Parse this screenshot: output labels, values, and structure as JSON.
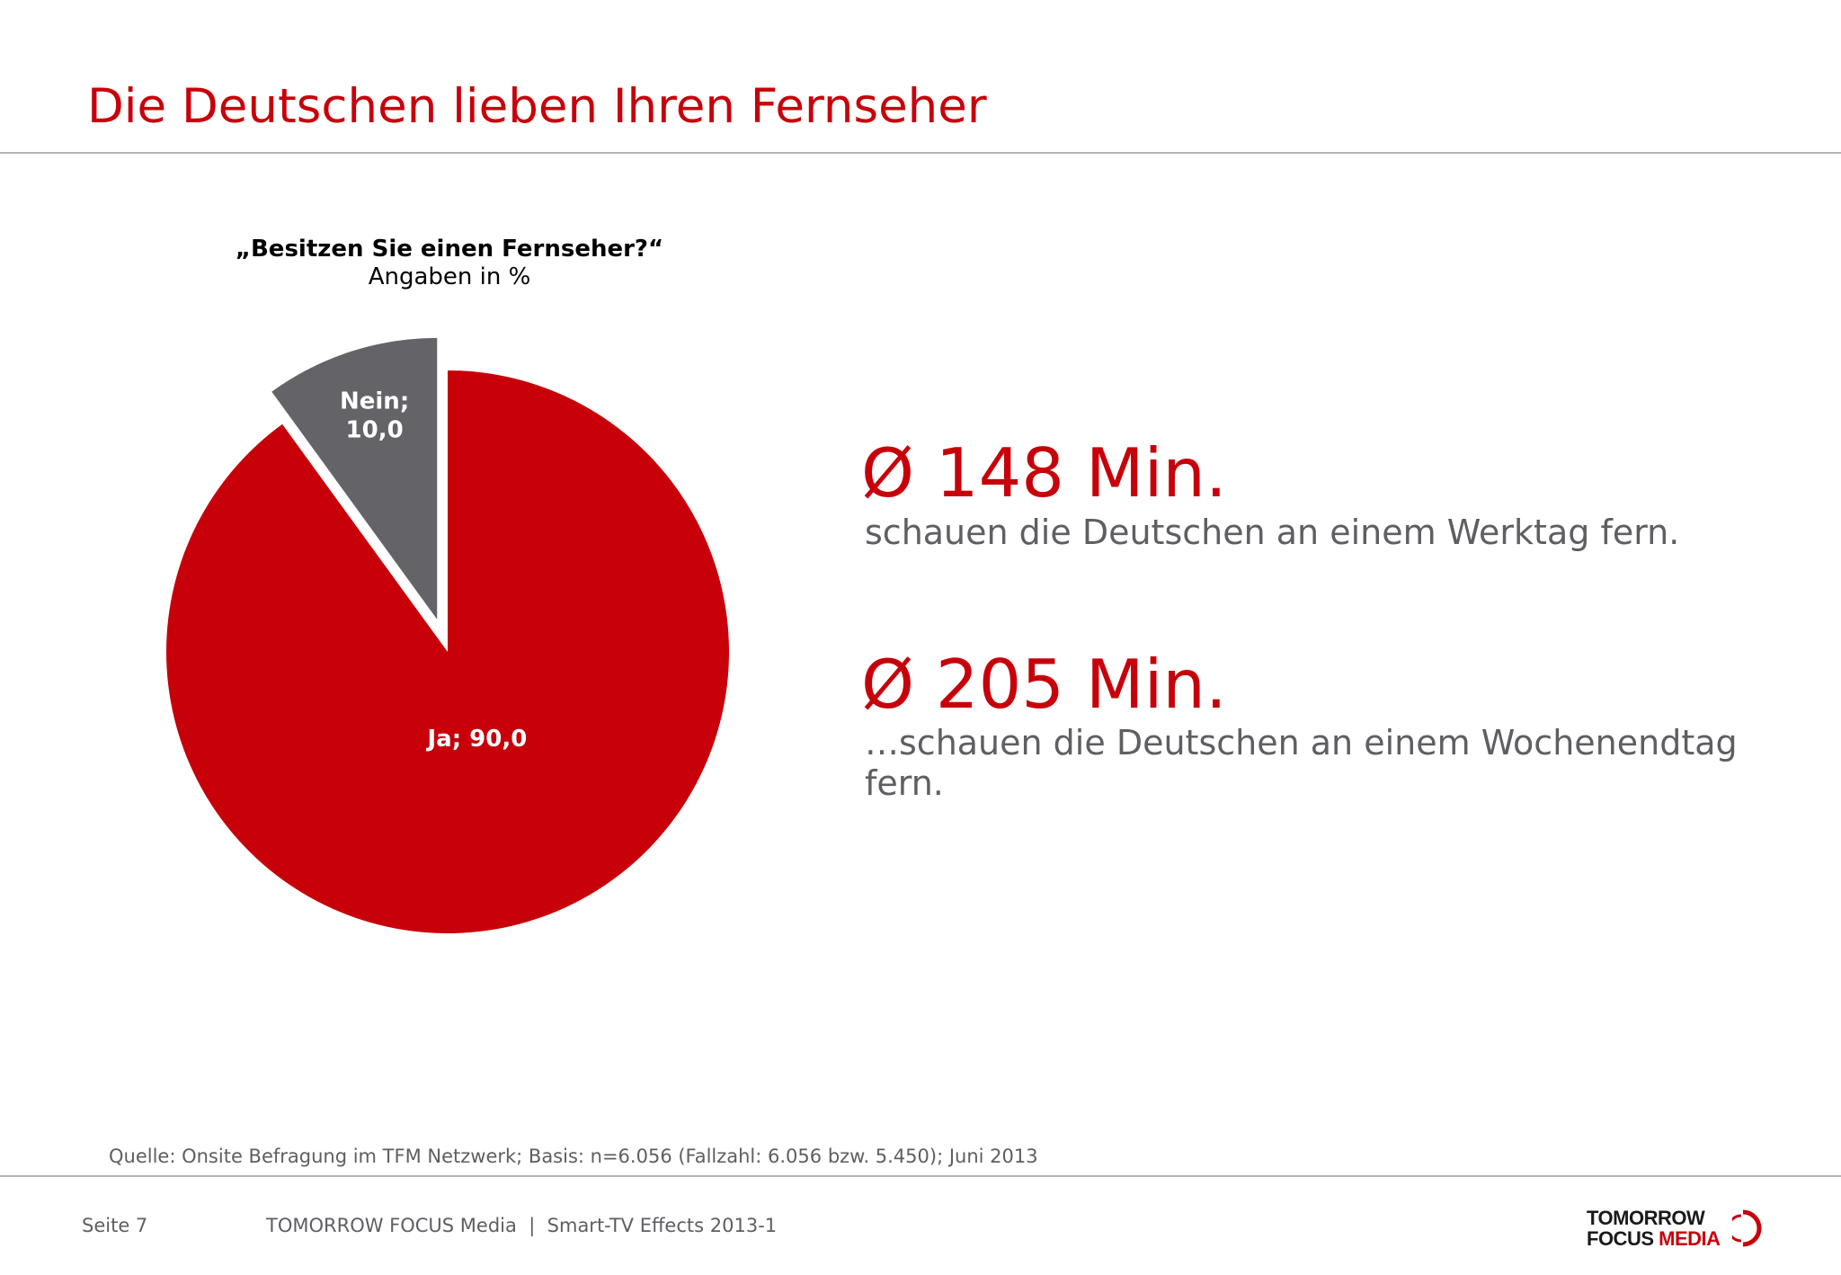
{
  "page": {
    "title": "Die Deutschen lieben Ihren Fernseher",
    "source": "Quelle: Onsite Befragung im TFM Netzwerk; Basis: n=6.056 (Fallzahl: 6.056 bzw. 5.450); Juni 2013",
    "footer": {
      "page_label": "Seite 7",
      "text": "TOMORROW FOCUS Media  |  Smart-TV Effects 2013-1"
    }
  },
  "logo": {
    "line1": "TOMORROW",
    "line2a": "FOCUS",
    "line2b": "MEDIA",
    "accent_color": "#c8000a"
  },
  "chart_data": {
    "type": "pie",
    "title": "„Besitzen Sie einen Fernseher?“",
    "subtitle": "Angaben in %",
    "slices": [
      {
        "name": "Ja",
        "value": 90.0,
        "label": "Ja; 90,0",
        "color": "#c8000a"
      },
      {
        "name": "Nein",
        "value": 10.0,
        "label": "Nein;\n10,0",
        "color": "#646468",
        "exploded": true
      }
    ],
    "legend": "none"
  },
  "stats": [
    {
      "value": "Ø 148 Min.",
      "text": "schauen die Deutschen an einem Werktag fern."
    },
    {
      "value": "Ø 205 Min.",
      "text": "…schauen die Deutschen an einem Wochenendtag fern."
    }
  ]
}
